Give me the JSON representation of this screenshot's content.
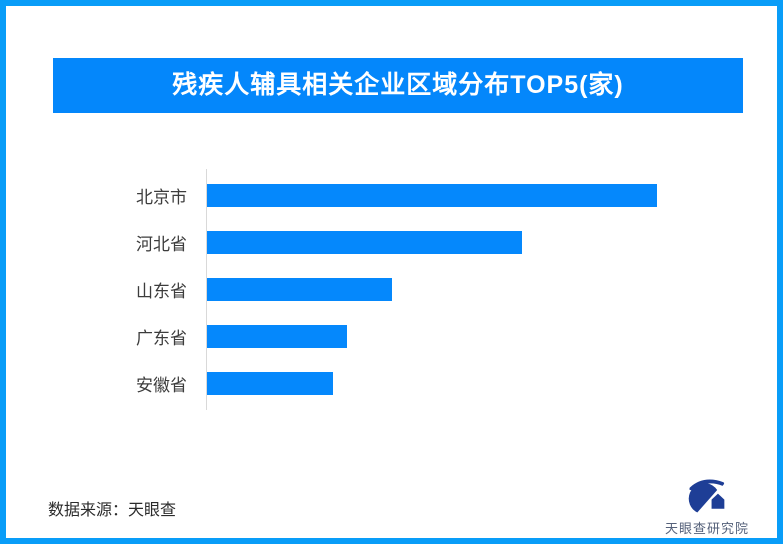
{
  "page": {
    "border_color": "#099df8",
    "background_color": "#ffffff"
  },
  "header": {
    "title": "残疾人辅具相关企业区域分布TOP5(家)",
    "banner_color": "#0487fb",
    "title_color": "#ffffff"
  },
  "chart_data": {
    "type": "bar",
    "orientation": "horizontal",
    "title": "残疾人辅具相关企业区域分布TOP5(家)",
    "unit": "家",
    "categories": [
      "北京市",
      "河北省",
      "山东省",
      "广东省",
      "安徽省"
    ],
    "values": [
      100,
      70,
      41,
      31,
      28
    ],
    "values_estimated": true,
    "bar_color": "#0588fc",
    "axis_line_color": "#d9d9d9",
    "grid": false,
    "legend": false,
    "data_labels": false
  },
  "footer": {
    "source_text": "数据来源：天眼查",
    "logo_text": "天眼查研究院",
    "logo_color": "#1e3e96",
    "logo_text_color": "#55617a"
  }
}
